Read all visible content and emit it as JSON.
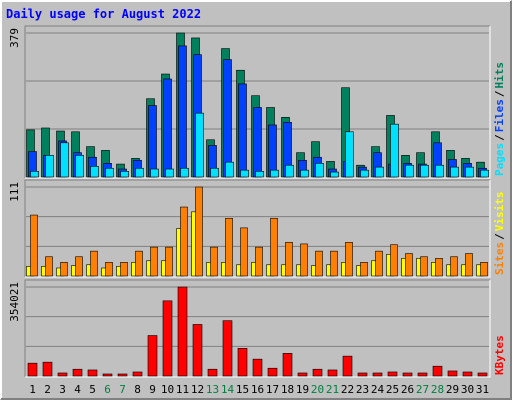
{
  "chart_data": [
    {
      "type": "bar",
      "title": "Daily usage for August 2022",
      "legend_separator": "/",
      "ylim": [
        0,
        379
      ],
      "yticks": [
        379
      ],
      "series": [
        {
          "name": "Hits",
          "color": "#00805C",
          "values": [
            124,
            129,
            121,
            119,
            80,
            70,
            34,
            49,
            206,
            271,
            379,
            366,
            98,
            338,
            281,
            214,
            183,
            157,
            64,
            93,
            41,
            235,
            31,
            80,
            162,
            57,
            64,
            119,
            70,
            49,
            39
          ]
        },
        {
          "name": "Files",
          "color": "#0040FF",
          "values": [
            67,
            57,
            95,
            64,
            52,
            36,
            21,
            44,
            188,
            258,
            345,
            322,
            83,
            309,
            245,
            183,
            137,
            144,
            44,
            52,
            21,
            41,
            26,
            64,
            34,
            36,
            34,
            90,
            46,
            36,
            23
          ]
        },
        {
          "name": "Pages",
          "color": "#00E0FF",
          "values": [
            15,
            57,
            90,
            57,
            28,
            23,
            15,
            23,
            21,
            21,
            23,
            168,
            23,
            39,
            18,
            15,
            18,
            31,
            18,
            36,
            13,
            119,
            18,
            26,
            139,
            31,
            31,
            31,
            26,
            26,
            18
          ]
        }
      ]
    },
    {
      "type": "bar",
      "legend_separator": "/",
      "ylim": [
        0,
        111
      ],
      "yticks": [
        111
      ],
      "series": [
        {
          "name": "Visits",
          "color": "#FFFF00",
          "values": [
            12,
            12,
            10,
            13,
            14,
            10,
            12,
            17,
            19,
            19,
            59,
            80,
            17,
            17,
            14,
            17,
            14,
            14,
            14,
            13,
            14,
            17,
            13,
            19,
            27,
            22,
            22,
            17,
            14,
            14,
            14
          ]
        },
        {
          "name": "Sites",
          "color": "#FF8000",
          "values": [
            76,
            24,
            17,
            24,
            31,
            17,
            17,
            31,
            36,
            36,
            86,
            111,
            36,
            72,
            60,
            36,
            72,
            42,
            40,
            31,
            31,
            42,
            17,
            31,
            39,
            28,
            24,
            22,
            24,
            28,
            17
          ]
        }
      ]
    },
    {
      "type": "bar",
      "ylim": [
        0,
        354021
      ],
      "yticks": [
        354021
      ],
      "categories": [
        "1",
        "2",
        "3",
        "4",
        "5",
        "6",
        "7",
        "8",
        "9",
        "10",
        "11",
        "12",
        "13",
        "14",
        "15",
        "16",
        "17",
        "18",
        "19",
        "20",
        "21",
        "22",
        "23",
        "24",
        "25",
        "26",
        "27",
        "28",
        "29",
        "30",
        "31"
      ],
      "category_colors": [
        "#000000",
        "#000000",
        "#000000",
        "#000000",
        "#000000",
        "#008040",
        "#008040",
        "#000000",
        "#000000",
        "#000000",
        "#000000",
        "#000000",
        "#008040",
        "#008040",
        "#000000",
        "#000000",
        "#000000",
        "#000000",
        "#000000",
        "#008040",
        "#008040",
        "#000000",
        "#000000",
        "#000000",
        "#000000",
        "#000000",
        "#008040",
        "#008040",
        "#000000",
        "#000000",
        "#000000"
      ],
      "series": [
        {
          "name": "KBytes",
          "color": "#FF0000",
          "values": [
            51000,
            55000,
            12000,
            27000,
            24000,
            8000,
            8000,
            16000,
            161000,
            299000,
            354021,
            205000,
            27000,
            220000,
            110000,
            67000,
            31000,
            90000,
            12000,
            27000,
            24000,
            79000,
            12000,
            12000,
            16000,
            12000,
            12000,
            39000,
            20000,
            16000,
            12000
          ]
        }
      ]
    }
  ]
}
